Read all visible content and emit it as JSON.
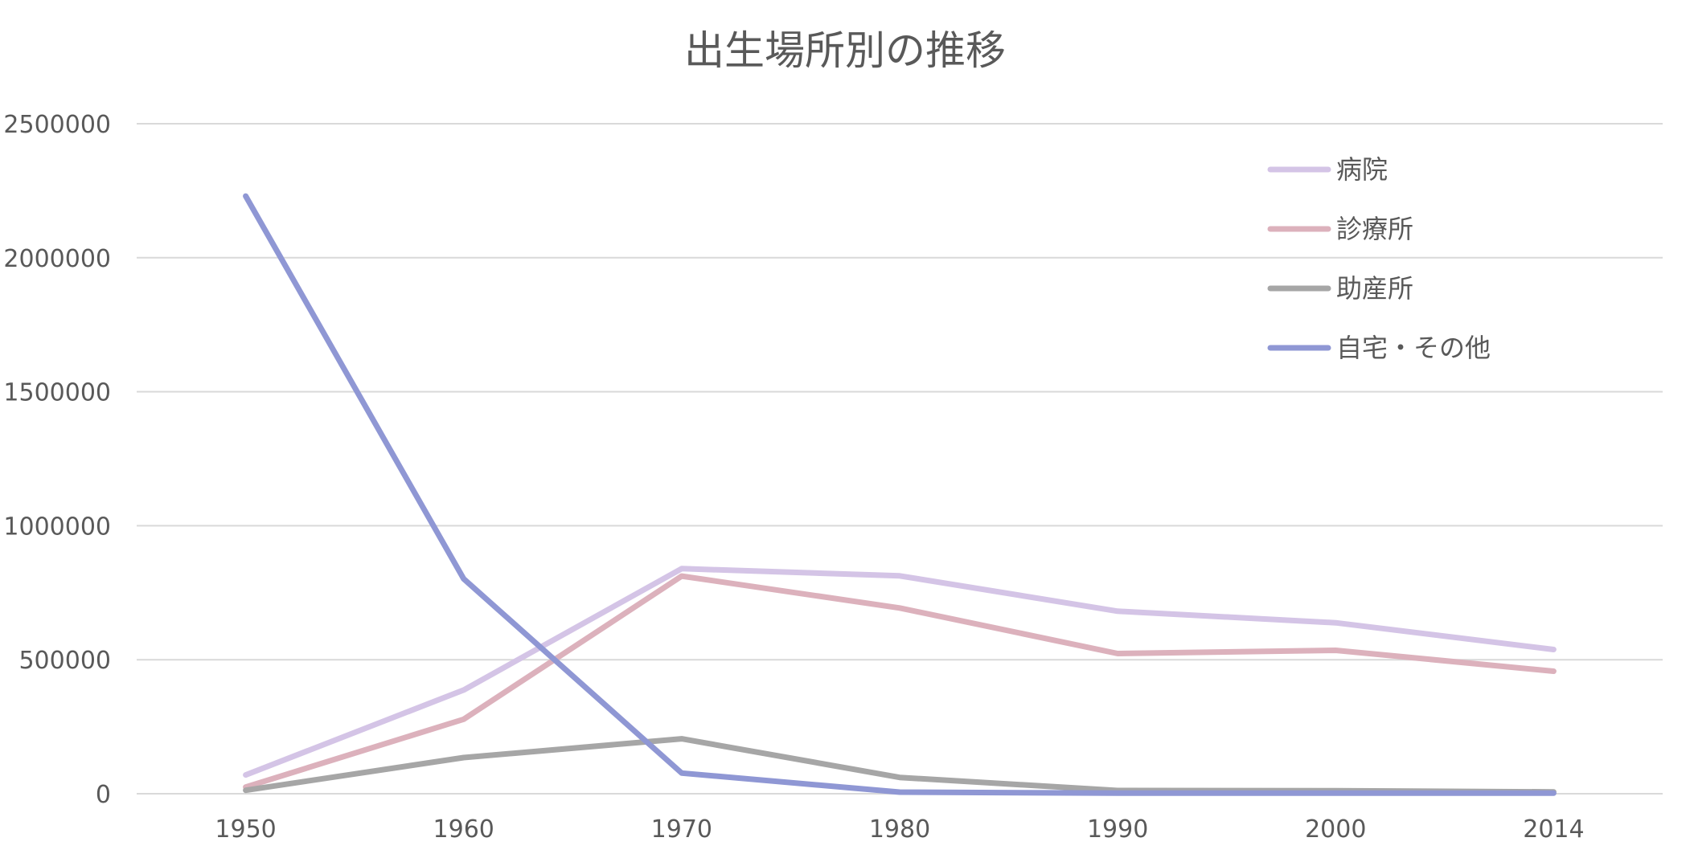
{
  "chart_data": {
    "type": "line",
    "title": "出生場所別の推移",
    "xlabel": "",
    "ylabel": "",
    "categories": [
      "1950",
      "1960",
      "1970",
      "1980",
      "1990",
      "2000",
      "2014"
    ],
    "ylim": [
      0,
      2500000
    ],
    "yticks": [
      "0",
      "500000",
      "1000000",
      "1500000",
      "2000000",
      "2500000"
    ],
    "grid": true,
    "legend_position": "top-right",
    "series": [
      {
        "name": "病院",
        "color": "#d4c4e6",
        "values": [
          70000,
          387000,
          840000,
          813000,
          681000,
          638000,
          538000
        ]
      },
      {
        "name": "診療所",
        "color": "#dcb1bc",
        "values": [
          25000,
          278000,
          812000,
          693000,
          523000,
          535000,
          457000
        ]
      },
      {
        "name": "助産所",
        "color": "#a6a6a6",
        "values": [
          13000,
          135000,
          205000,
          61000,
          12000,
          11000,
          7000
        ]
      },
      {
        "name": "自宅・その他",
        "color": "#8f97d4",
        "values": [
          2230000,
          802000,
          77000,
          6000,
          2000,
          2000,
          2000
        ]
      }
    ]
  }
}
